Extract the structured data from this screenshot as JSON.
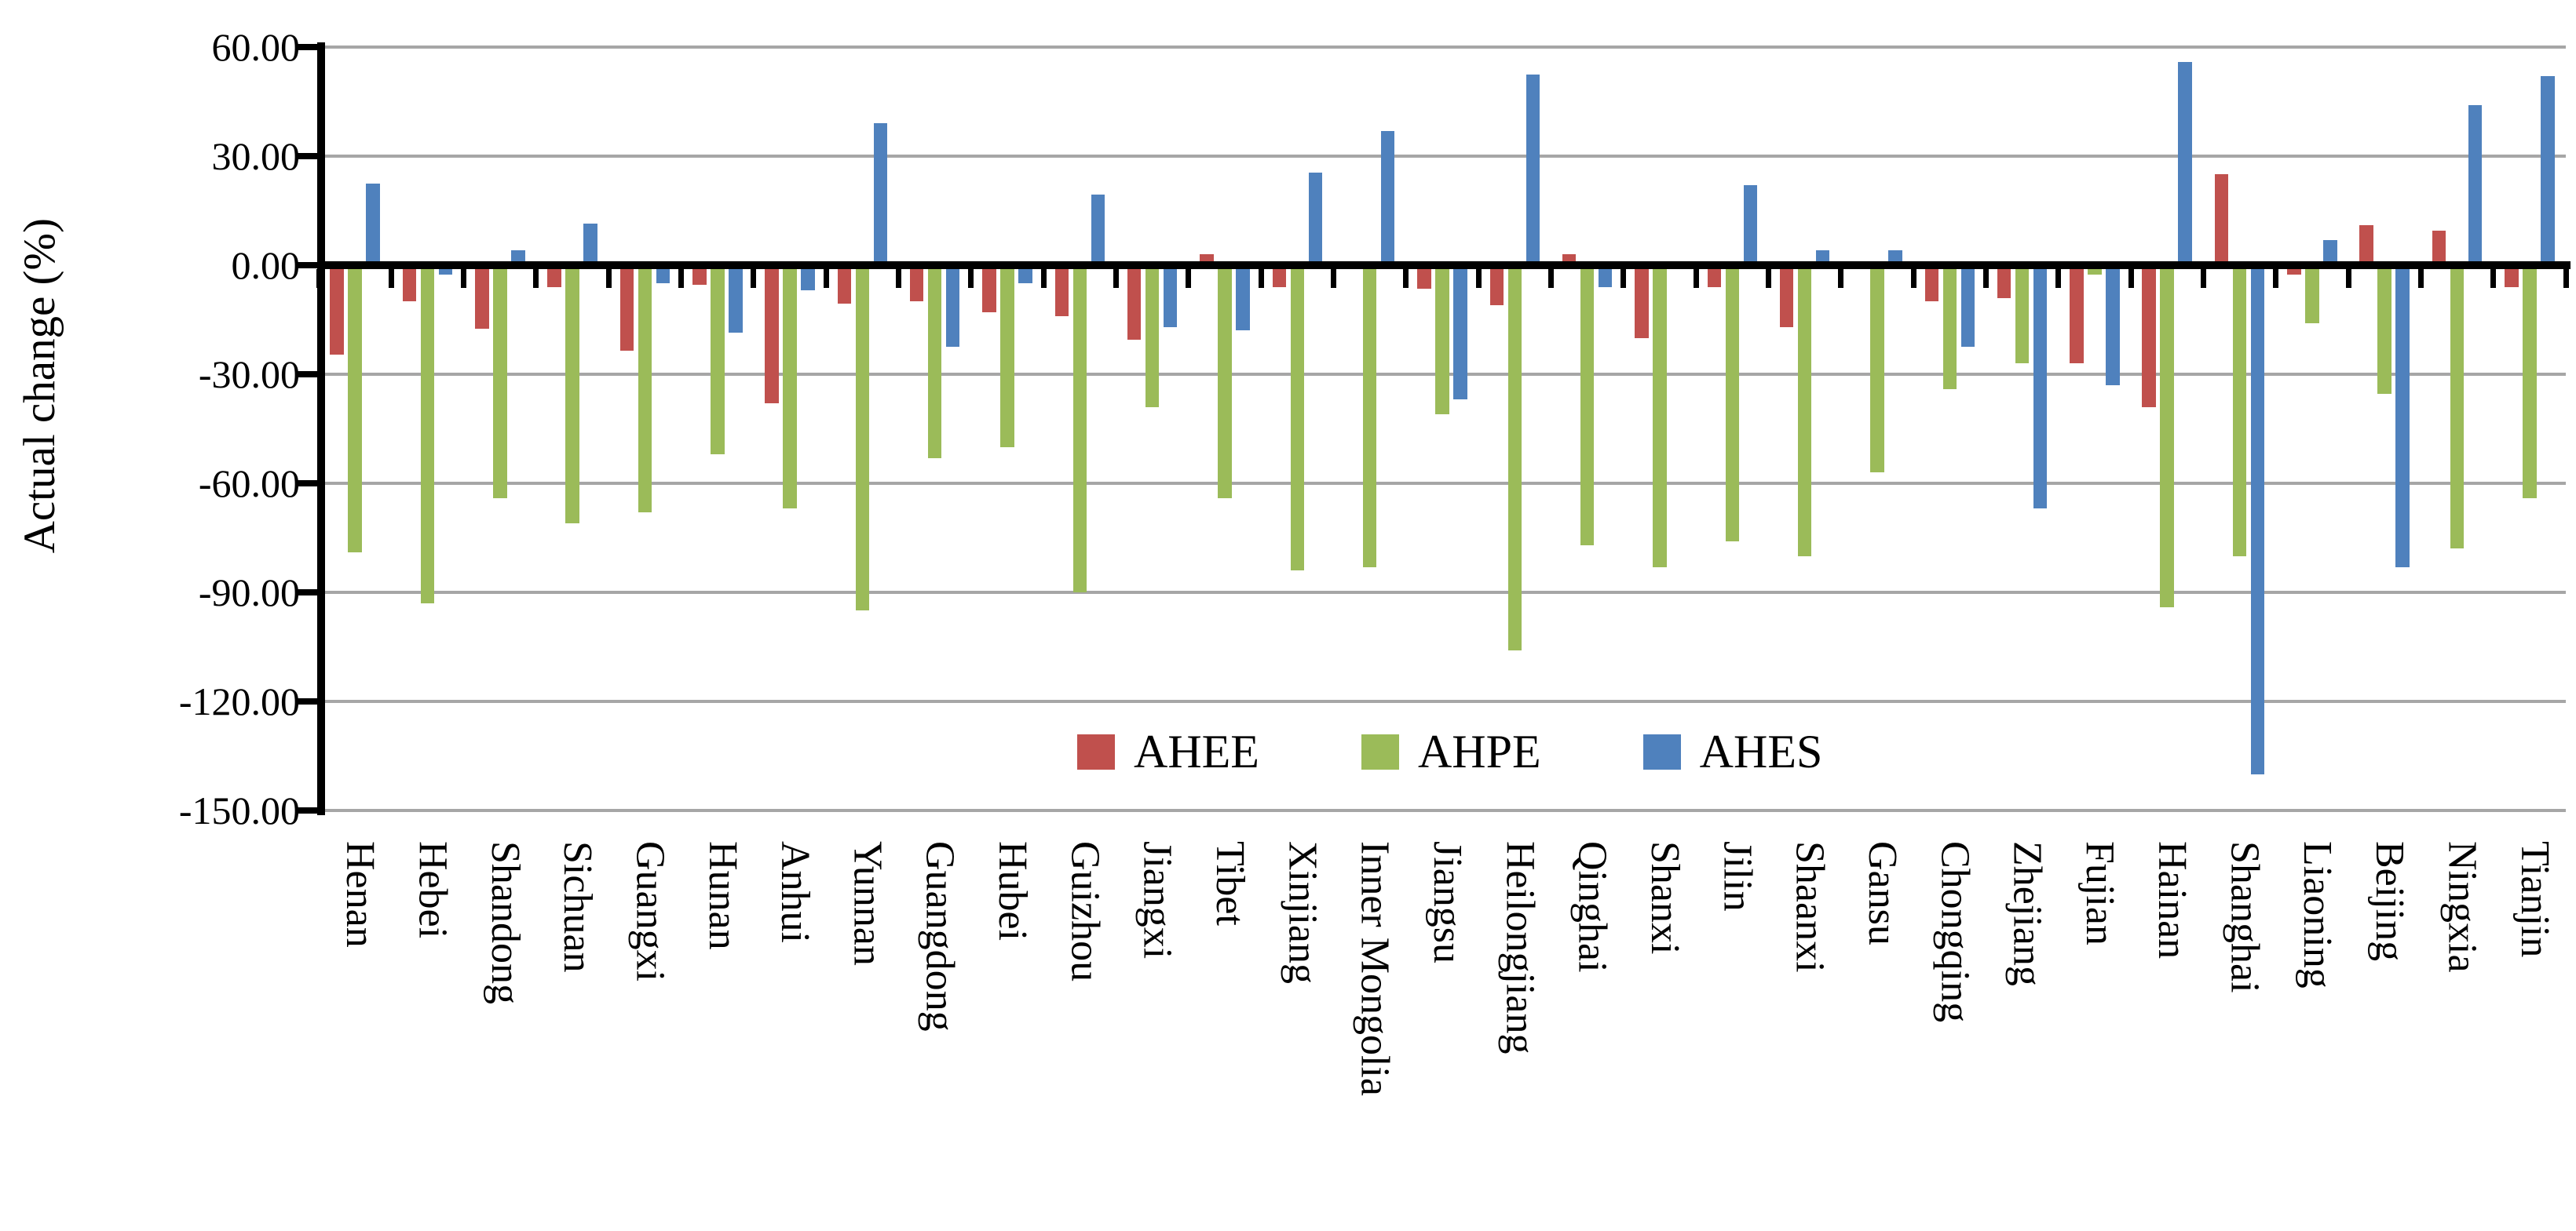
{
  "chart_data": {
    "type": "bar",
    "title": "",
    "xlabel": "",
    "ylabel": "Actual change (%)",
    "ylim": [
      -150,
      60
    ],
    "ytick_step": 30,
    "ytick_labels": [
      "60.00",
      "30.00",
      "0.00",
      "-30.00",
      "-60.00",
      "-90.00",
      "-120.00",
      "-150.00"
    ],
    "ytick_values": [
      60,
      30,
      0,
      -30,
      -60,
      -90,
      -120,
      -150
    ],
    "grid": true,
    "legend_position": "inside-bottom",
    "background_color": "#FFFFFF",
    "gridline_color": "#A6A6A6",
    "axis_color": "#000000",
    "categories": [
      "Henan",
      "Hebei",
      "Shandong",
      "Sichuan",
      "Guangxi",
      "Hunan",
      "Anhui",
      "Yunnan",
      "Guangdong",
      "Hubei",
      "Guizhou",
      "Jiangxi",
      "Tibet",
      "Xinjiang",
      "Inner Mongolia",
      "Jiangsu",
      "Heilongjiang",
      "Qinghai",
      "Shanxi",
      "Jilin",
      "Shaanxi",
      "Gansu",
      "Chongqing",
      "Zhejiang",
      "Fujian",
      "Hainan",
      "Shanghai",
      "Liaoning",
      "Beijing",
      "Ningxia",
      "Tianjin"
    ],
    "series": [
      {
        "name": "AHEE",
        "color": "#C0504D",
        "values": [
          -24.5,
          -10,
          -17.5,
          -6,
          -23.5,
          -5.5,
          -38,
          -10.5,
          -10,
          -13,
          -14,
          -20.5,
          3,
          -6,
          0,
          -6.5,
          -11,
          3,
          -20,
          -6,
          -17,
          0,
          -10,
          -9,
          -27,
          -39,
          25,
          -2.5,
          11,
          9.5,
          -6
        ]
      },
      {
        "name": "AHPE",
        "color": "#9BBB59",
        "values": [
          -79,
          -93,
          -64,
          -71,
          -68,
          -52,
          -67,
          -95,
          -53,
          -50,
          -90,
          -39,
          -64,
          -84,
          -83,
          -41,
          -106,
          -77,
          -83,
          -76,
          -80,
          -57,
          -34,
          -27,
          -2.5,
          -94,
          -80,
          -16,
          -35.5,
          -78,
          -64
        ]
      },
      {
        "name": "AHES",
        "color": "#4F81BD",
        "values": [
          22.5,
          -2.5,
          4,
          11.5,
          -5,
          -18.5,
          -7,
          39,
          -22.5,
          -5,
          19.5,
          -17,
          -18,
          25.5,
          37,
          -37,
          52.5,
          -6,
          0,
          22,
          4,
          4,
          -22.5,
          -67,
          -33,
          56,
          -140,
          7,
          -83,
          44,
          52
        ]
      }
    ]
  }
}
